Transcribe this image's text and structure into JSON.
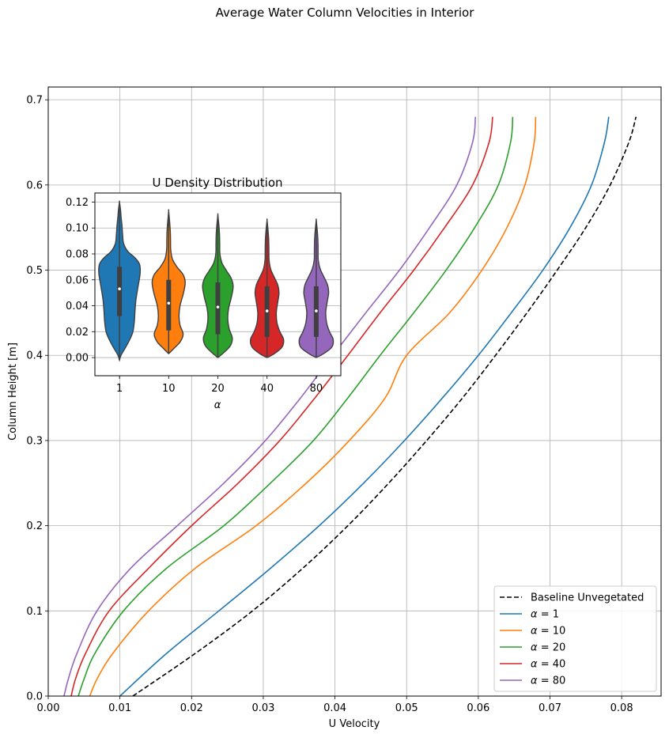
{
  "figure": {
    "suptitle": "Average Water Column Velocities in Interior"
  },
  "chart_data": [
    {
      "type": "line",
      "title": "",
      "xlabel": "U Velocity",
      "ylabel": "Column Height [m]",
      "xlim": [
        0.0,
        0.0855
      ],
      "ylim": [
        0.0,
        0.715
      ],
      "xticks": [
        "0.00",
        "0.01",
        "0.02",
        "0.03",
        "0.04",
        "0.05",
        "0.06",
        "0.07",
        "0.08"
      ],
      "xtick_values": [
        0,
        0.01,
        0.02,
        0.03,
        0.04,
        0.05,
        0.06,
        0.07,
        0.08
      ],
      "yticks": [
        "0.0",
        "0.1",
        "0.2",
        "0.3",
        "0.4",
        "0.5",
        "0.6",
        "0.7"
      ],
      "ytick_values": [
        0,
        0.1,
        0.2,
        0.3,
        0.4,
        0.5,
        0.6,
        0.7
      ],
      "grid": true,
      "legend_position": "bottom-right",
      "series": [
        {
          "name": "Baseline Unvegetated",
          "label_prefix": "",
          "label_value": "",
          "color": "#000000",
          "dashed": true,
          "y": [
            0,
            0.05,
            0.1,
            0.15,
            0.2,
            0.25,
            0.3,
            0.35,
            0.4,
            0.45,
            0.5,
            0.55,
            0.6,
            0.65,
            0.68
          ],
          "x": [
            0.0118,
            0.0205,
            0.0285,
            0.0355,
            0.0418,
            0.0475,
            0.0528,
            0.0578,
            0.0624,
            0.0668,
            0.071,
            0.075,
            0.0784,
            0.081,
            0.082
          ]
        },
        {
          "name": "α = 1",
          "label_prefix": "α",
          "label_value": "= 1",
          "color": "#1f77b4",
          "dashed": false,
          "y": [
            0,
            0.05,
            0.1,
            0.15,
            0.2,
            0.25,
            0.3,
            0.35,
            0.4,
            0.45,
            0.5,
            0.55,
            0.6,
            0.65,
            0.68
          ],
          "x": [
            0.01,
            0.0165,
            0.0238,
            0.031,
            0.0378,
            0.044,
            0.0497,
            0.055,
            0.06,
            0.0646,
            0.069,
            0.0728,
            0.0758,
            0.0776,
            0.0782
          ]
        },
        {
          "name": "α = 10",
          "label_prefix": "α",
          "label_value": "= 10",
          "color": "#ff7f0e",
          "dashed": false,
          "y": [
            0,
            0.02,
            0.05,
            0.1,
            0.15,
            0.2,
            0.25,
            0.3,
            0.35,
            0.4,
            0.45,
            0.5,
            0.55,
            0.6,
            0.65,
            0.68
          ],
          "x": [
            0.0058,
            0.0068,
            0.009,
            0.014,
            0.0205,
            0.029,
            0.036,
            0.042,
            0.047,
            0.05,
            0.056,
            0.0605,
            0.064,
            0.0665,
            0.0678,
            0.068
          ]
        },
        {
          "name": "α = 20",
          "label_prefix": "α",
          "label_value": "= 20",
          "color": "#2ca02c",
          "dashed": false,
          "y": [
            0,
            0.02,
            0.05,
            0.1,
            0.15,
            0.2,
            0.25,
            0.3,
            0.35,
            0.4,
            0.45,
            0.5,
            0.55,
            0.6,
            0.65,
            0.68
          ],
          "x": [
            0.0042,
            0.005,
            0.0065,
            0.0105,
            0.0165,
            0.0245,
            0.031,
            0.037,
            0.0418,
            0.0463,
            0.051,
            0.0555,
            0.0595,
            0.0628,
            0.0645,
            0.0648
          ]
        },
        {
          "name": "α = 40",
          "label_prefix": "α",
          "label_value": "= 40",
          "color": "#d62728",
          "dashed": false,
          "y": [
            0,
            0.02,
            0.05,
            0.1,
            0.15,
            0.2,
            0.25,
            0.3,
            0.35,
            0.4,
            0.45,
            0.5,
            0.55,
            0.6,
            0.65,
            0.68
          ],
          "x": [
            0.0032,
            0.0038,
            0.0052,
            0.0085,
            0.014,
            0.02,
            0.0265,
            0.0323,
            0.0372,
            0.0418,
            0.0463,
            0.051,
            0.0553,
            0.0592,
            0.0615,
            0.062
          ]
        },
        {
          "name": "α = 80",
          "label_prefix": "α",
          "label_value": "= 80",
          "color": "#9467bd",
          "dashed": false,
          "y": [
            0,
            0.02,
            0.05,
            0.1,
            0.15,
            0.2,
            0.25,
            0.3,
            0.35,
            0.4,
            0.45,
            0.5,
            0.55,
            0.6,
            0.65,
            0.68
          ],
          "x": [
            0.0022,
            0.0028,
            0.004,
            0.0068,
            0.0115,
            0.018,
            0.0245,
            0.0303,
            0.0352,
            0.0397,
            0.0443,
            0.049,
            0.0532,
            0.057,
            0.0592,
            0.0596
          ]
        }
      ]
    },
    {
      "type": "violin",
      "title": "U Density Distribution",
      "xlabel": "α",
      "ylabel": "",
      "ylim": [
        -0.014,
        0.127
      ],
      "yticks": [
        "0.00",
        "0.02",
        "0.04",
        "0.06",
        "0.08",
        "0.10",
        "0.12"
      ],
      "ytick_values": [
        0,
        0.02,
        0.04,
        0.06,
        0.08,
        0.1,
        0.12
      ],
      "categories": [
        "1",
        "10",
        "20",
        "40",
        "80"
      ],
      "grid": true,
      "violins": [
        {
          "category": "1",
          "color": "#1f77b4",
          "min": -0.002,
          "max": 0.12,
          "q1": 0.032,
          "median": 0.053,
          "q3": 0.07,
          "profile": [
            [
              -0.002,
              0
            ],
            [
              0.002,
              0.08
            ],
            [
              0.008,
              0.3
            ],
            [
              0.014,
              0.5
            ],
            [
              0.02,
              0.65
            ],
            [
              0.028,
              0.72
            ],
            [
              0.036,
              0.75
            ],
            [
              0.045,
              0.8
            ],
            [
              0.055,
              0.9
            ],
            [
              0.065,
              1.0
            ],
            [
              0.072,
              0.97
            ],
            [
              0.077,
              0.75
            ],
            [
              0.082,
              0.4
            ],
            [
              0.088,
              0.2
            ],
            [
              0.095,
              0.15
            ],
            [
              0.102,
              0.12
            ],
            [
              0.108,
              0.08
            ],
            [
              0.114,
              0.05
            ],
            [
              0.12,
              0
            ]
          ]
        },
        {
          "category": "10",
          "color": "#ff7f0e",
          "min": 0.003,
          "max": 0.113,
          "q1": 0.021,
          "median": 0.042,
          "q3": 0.06,
          "profile": [
            [
              0.003,
              0
            ],
            [
              0.007,
              0.25
            ],
            [
              0.012,
              0.55
            ],
            [
              0.018,
              0.7
            ],
            [
              0.025,
              0.55
            ],
            [
              0.032,
              0.5
            ],
            [
              0.04,
              0.55
            ],
            [
              0.05,
              0.72
            ],
            [
              0.058,
              0.8
            ],
            [
              0.064,
              0.7
            ],
            [
              0.07,
              0.4
            ],
            [
              0.076,
              0.18
            ],
            [
              0.083,
              0.1
            ],
            [
              0.09,
              0.09
            ],
            [
              0.097,
              0.08
            ],
            [
              0.104,
              0.05
            ],
            [
              0.113,
              0
            ]
          ]
        },
        {
          "category": "20",
          "color": "#2ca02c",
          "min": 0.0,
          "max": 0.11,
          "q1": 0.018,
          "median": 0.039,
          "q3": 0.058,
          "profile": [
            [
              0.0,
              0
            ],
            [
              0.004,
              0.3
            ],
            [
              0.009,
              0.6
            ],
            [
              0.015,
              0.7
            ],
            [
              0.022,
              0.55
            ],
            [
              0.03,
              0.48
            ],
            [
              0.038,
              0.52
            ],
            [
              0.047,
              0.66
            ],
            [
              0.055,
              0.74
            ],
            [
              0.061,
              0.65
            ],
            [
              0.067,
              0.42
            ],
            [
              0.073,
              0.2
            ],
            [
              0.08,
              0.1
            ],
            [
              0.088,
              0.09
            ],
            [
              0.095,
              0.08
            ],
            [
              0.102,
              0.05
            ],
            [
              0.11,
              0
            ]
          ]
        },
        {
          "category": "40",
          "color": "#d62728",
          "min": 0.0,
          "max": 0.106,
          "q1": 0.016,
          "median": 0.036,
          "q3": 0.055,
          "profile": [
            [
              0.0,
              0
            ],
            [
              0.003,
              0.35
            ],
            [
              0.008,
              0.72
            ],
            [
              0.014,
              0.8
            ],
            [
              0.02,
              0.62
            ],
            [
              0.027,
              0.48
            ],
            [
              0.035,
              0.45
            ],
            [
              0.043,
              0.52
            ],
            [
              0.05,
              0.58
            ],
            [
              0.056,
              0.52
            ],
            [
              0.062,
              0.35
            ],
            [
              0.068,
              0.18
            ],
            [
              0.075,
              0.1
            ],
            [
              0.083,
              0.09
            ],
            [
              0.091,
              0.08
            ],
            [
              0.098,
              0.05
            ],
            [
              0.106,
              0
            ]
          ]
        },
        {
          "category": "80",
          "color": "#9467bd",
          "min": 0.0,
          "max": 0.106,
          "q1": 0.016,
          "median": 0.036,
          "q3": 0.055,
          "profile": [
            [
              0.0,
              0
            ],
            [
              0.003,
              0.35
            ],
            [
              0.008,
              0.75
            ],
            [
              0.014,
              0.82
            ],
            [
              0.02,
              0.64
            ],
            [
              0.027,
              0.5
            ],
            [
              0.035,
              0.46
            ],
            [
              0.043,
              0.53
            ],
            [
              0.05,
              0.6
            ],
            [
              0.056,
              0.55
            ],
            [
              0.062,
              0.38
            ],
            [
              0.068,
              0.2
            ],
            [
              0.075,
              0.1
            ],
            [
              0.083,
              0.09
            ],
            [
              0.091,
              0.08
            ],
            [
              0.098,
              0.05
            ],
            [
              0.106,
              0
            ]
          ]
        }
      ]
    }
  ]
}
